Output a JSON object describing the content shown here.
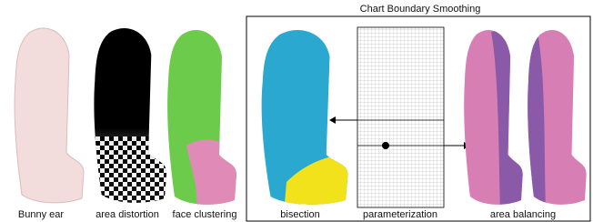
{
  "figure": {
    "group_title": "Chart Boundary Smoothing",
    "panels": [
      {
        "label": "Bunny ear"
      },
      {
        "label": "area distortion"
      },
      {
        "label": "face clustering"
      },
      {
        "label": "bisection"
      },
      {
        "label": "parameterization"
      },
      {
        "label": "area balancing"
      }
    ]
  }
}
